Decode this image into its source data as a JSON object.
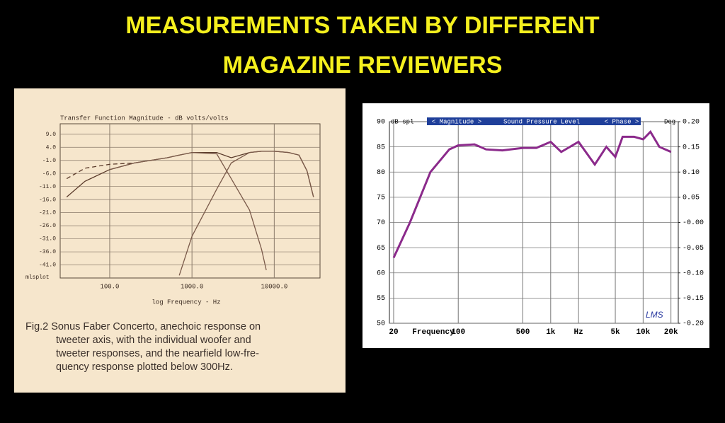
{
  "slide": {
    "title": [
      "MEASUREMENTS TAKEN BY DIFFERENT",
      "MAGAZINE REVIEWERS"
    ]
  },
  "chart_data": [
    {
      "type": "line",
      "title": "Transfer Function Magnitude - dB volts/volts",
      "x_label": "log Frequency - Hz",
      "corner_label": "mlsplot",
      "caption": [
        "Fig.2  Sonus Faber Concerto, anechoic response on",
        "tweeter axis, with the individual woofer and",
        "tweeter responses, and the nearfield low-fre-",
        "quency response plotted below 300Hz."
      ],
      "log_x": true,
      "grid": true,
      "xlim": [
        25,
        36000
      ],
      "ylim": [
        -46,
        13
      ],
      "xticks": [
        {
          "value": 100,
          "label": "100.0"
        },
        {
          "value": 1000,
          "label": "1000.0"
        },
        {
          "value": 10000,
          "label": "10000.0"
        }
      ],
      "yticks": [
        {
          "value": 9,
          "label": "9.0"
        },
        {
          "value": 4,
          "label": "4.0"
        },
        {
          "value": -1,
          "label": "-1.0"
        },
        {
          "value": -6,
          "label": "-6.0"
        },
        {
          "value": -11,
          "label": "-11.0"
        },
        {
          "value": -16,
          "label": "-16.0"
        },
        {
          "value": -21,
          "label": "-21.0"
        },
        {
          "value": -26,
          "label": "-26.0"
        },
        {
          "value": -31,
          "label": "-31.0"
        },
        {
          "value": -36,
          "label": "-36.0"
        },
        {
          "value": -41,
          "label": "-41.0"
        }
      ],
      "x": [
        30,
        50,
        100,
        200,
        500,
        700,
        1000,
        2000,
        3000,
        5000,
        7000,
        8000,
        10000,
        15000,
        20000,
        25000,
        30000
      ],
      "series": [
        {
          "color": "#5a3a2a",
          "values": [
            -15,
            -9,
            -4.5,
            -2,
            0,
            1,
            2,
            2,
            0,
            2,
            2.5,
            2.5,
            2.5,
            2,
            1,
            -5,
            -15
          ]
        },
        {
          "color": "#5a3a2a",
          "dashed": true,
          "values": [
            -8,
            -4,
            -2.5,
            -2,
            null,
            null,
            null,
            null,
            null,
            null,
            null,
            null,
            null,
            null,
            null,
            null,
            null
          ]
        },
        {
          "color": "#7a5a4a",
          "values": [
            null,
            null,
            -4.5,
            -2,
            0,
            1,
            2,
            1.5,
            -8,
            -20,
            -35,
            -43,
            null,
            null,
            null,
            null,
            null
          ]
        },
        {
          "color": "#7a5a4a",
          "values": [
            null,
            null,
            null,
            null,
            null,
            -45,
            -30,
            -12,
            -2,
            2,
            2.5,
            2.5,
            2.5,
            2,
            1,
            -5,
            -15
          ]
        }
      ]
    },
    {
      "type": "line",
      "title_parts": [
        "< Magnitude >",
        "Sound Pressure Level",
        "< Phase >"
      ],
      "y_label": "dB spl",
      "y2_label": "Deg",
      "x_label": "Frequency",
      "brand": "LMS",
      "log_x": true,
      "grid": true,
      "xlim": [
        18,
        24000
      ],
      "ylim": [
        50,
        90
      ],
      "y2lim": [
        -0.2,
        0.2
      ],
      "xticks": [
        20,
        100,
        500,
        {
          "value": 1000,
          "label": "1k"
        },
        {
          "value": 2000,
          "label": "Hz"
        },
        {
          "value": 5000,
          "label": "5k"
        },
        {
          "value": 10000,
          "label": "10k"
        },
        {
          "value": 20000,
          "label": "20k"
        }
      ],
      "yticks": [
        50,
        55,
        60,
        65,
        70,
        75,
        80,
        85,
        90
      ],
      "y2ticks": [
        {
          "value": -0.2,
          "label": "-0.20"
        },
        {
          "value": -0.15,
          "label": "-0.15"
        },
        {
          "value": -0.1,
          "label": "-0.10"
        },
        {
          "value": -0.05,
          "label": "-0.05"
        },
        {
          "value": 0,
          "label": "-0.00"
        },
        {
          "value": 0.05,
          "label": "0.05"
        },
        {
          "value": 0.1,
          "label": "0.10"
        },
        {
          "value": 0.15,
          "label": "0.15"
        },
        {
          "value": 0.2,
          "label": "0.20"
        }
      ],
      "x": [
        20,
        30,
        50,
        80,
        100,
        150,
        200,
        300,
        500,
        700,
        1000,
        1300,
        2000,
        3000,
        4000,
        5000,
        6000,
        8000,
        10000,
        12000,
        15000,
        20000
      ],
      "series": [
        {
          "color": "#8b2a8b",
          "values": [
            63,
            70,
            80,
            84.5,
            85.3,
            85.5,
            84.5,
            84.3,
            84.8,
            84.8,
            86,
            84,
            86,
            81.5,
            85,
            83,
            87,
            87,
            86.5,
            88,
            85,
            84
          ]
        }
      ]
    }
  ]
}
